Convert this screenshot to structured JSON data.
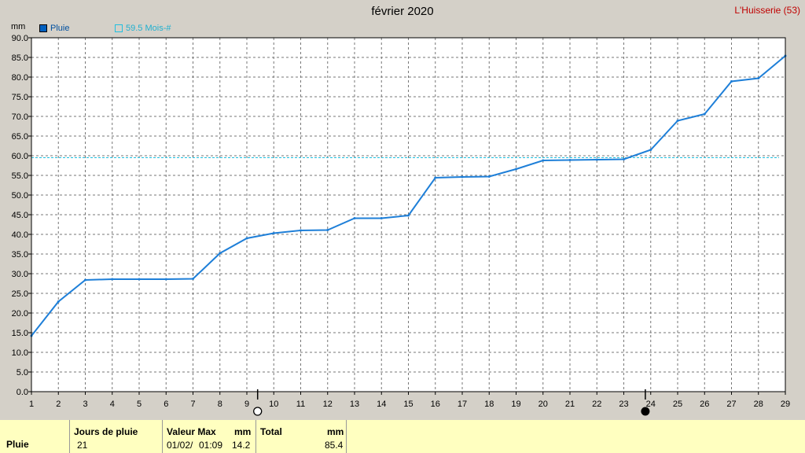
{
  "header": {
    "title": "février 2020",
    "location": "L'Huisserie (53)",
    "unit": "mm"
  },
  "legend": {
    "series": {
      "label": "Pluie",
      "color": "#0060c0"
    },
    "reference": {
      "label": "59.5 Mois-#",
      "color": "#20c0e0"
    }
  },
  "chart_data": {
    "type": "line",
    "title": "février 2020",
    "ylabel": "mm",
    "xlabel": "",
    "xlim": [
      1,
      29
    ],
    "ylim": [
      0,
      90
    ],
    "grid": true,
    "x": [
      1,
      2,
      3,
      4,
      5,
      6,
      7,
      8,
      9,
      10,
      11,
      12,
      13,
      14,
      15,
      16,
      17,
      18,
      19,
      20,
      21,
      22,
      23,
      24,
      25,
      26,
      27,
      28,
      29
    ],
    "series": [
      {
        "name": "Pluie",
        "color": "#1e7fd8",
        "values": [
          14.2,
          22.9,
          28.4,
          28.6,
          28.6,
          28.6,
          28.7,
          35.2,
          39.0,
          40.3,
          41.0,
          41.1,
          44.1,
          44.1,
          44.8,
          54.4,
          54.6,
          54.7,
          56.6,
          58.8,
          58.9,
          59.0,
          59.1,
          61.5,
          68.9,
          70.6,
          78.9,
          79.7,
          85.4
        ]
      }
    ],
    "reference_line": {
      "label": "59.5 Mois-#",
      "value": 59.5,
      "color": "#20c0e0"
    },
    "y_ticks": [
      "0.0",
      "5.0",
      "10.0",
      "15.0",
      "20.0",
      "25.0",
      "30.0",
      "35.0",
      "40.0",
      "45.0",
      "50.0",
      "55.0",
      "60.0",
      "65.0",
      "70.0",
      "75.0",
      "80.0",
      "85.0",
      "90.0"
    ],
    "x_ticks": [
      "1",
      "2",
      "3",
      "4",
      "5",
      "6",
      "7",
      "8",
      "9",
      "10",
      "11",
      "12",
      "13",
      "14",
      "15",
      "16",
      "17",
      "18",
      "19",
      "20",
      "21",
      "22",
      "23",
      "24",
      "25",
      "26",
      "27",
      "28",
      "29"
    ],
    "moon_phases": [
      {
        "day": 9.4,
        "phase": "full-moon"
      },
      {
        "day": 23.8,
        "phase": "new-moon"
      }
    ]
  },
  "summary": {
    "row_label": "Pluie",
    "rain_days_header": "Jours de pluie",
    "rain_days_value": "21",
    "max_header": "Valeur Max",
    "max_unit": "mm",
    "max_date": "01/02/",
    "max_time": "01:09",
    "max_value": "14.2",
    "total_header": "Total",
    "total_unit": "mm",
    "total_value": "85.4"
  }
}
